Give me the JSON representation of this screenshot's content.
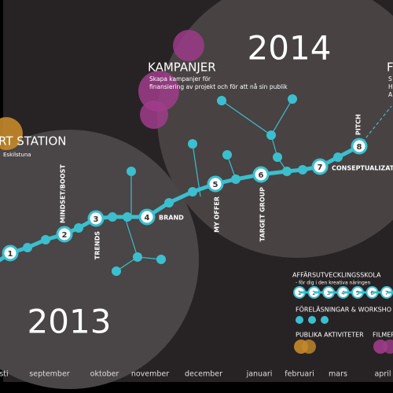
{
  "years": {
    "early": "2013",
    "late": "2014"
  },
  "start": {
    "title": "RT STATION",
    "place": "Eskilstuna"
  },
  "campaign": {
    "title": "KAMPANJER",
    "lines": [
      "Skapa kampanjer för",
      "finansiering av projekt och för att nå sin publik"
    ]
  },
  "corner": {
    "title": "F",
    "lines": [
      "S",
      "H",
      "A"
    ]
  },
  "steps": [
    {
      "number": "1",
      "label": null
    },
    {
      "number": "2",
      "label": "MINDSET/BOOST"
    },
    {
      "number": "3",
      "label": "TRENDS"
    },
    {
      "number": "4",
      "label": "BRAND"
    },
    {
      "number": "5",
      "label": "MY OFFER"
    },
    {
      "number": "6",
      "label": "TARGET GROUP"
    },
    {
      "number": "7",
      "label": "CONSEPTUALIZATI"
    },
    {
      "number": "8",
      "label": "PITCH"
    }
  ],
  "legend": {
    "school": {
      "title": "AFFÄRSUTVECKLINGSSKOLA",
      "subtitle": "- för dig i den kreativa näringen",
      "steps": [
        "1",
        "2",
        "3",
        "4",
        "5",
        "6",
        "7",
        "8"
      ]
    },
    "lectures": "FÖRELÄSNINGAR & WORKSHO",
    "public": "PUBLIKA AKTIVITETER",
    "films": "FILMER"
  },
  "months": [
    "sti",
    "september",
    "oktober",
    "november",
    "december",
    "januari",
    "februari",
    "mars",
    "april"
  ]
}
